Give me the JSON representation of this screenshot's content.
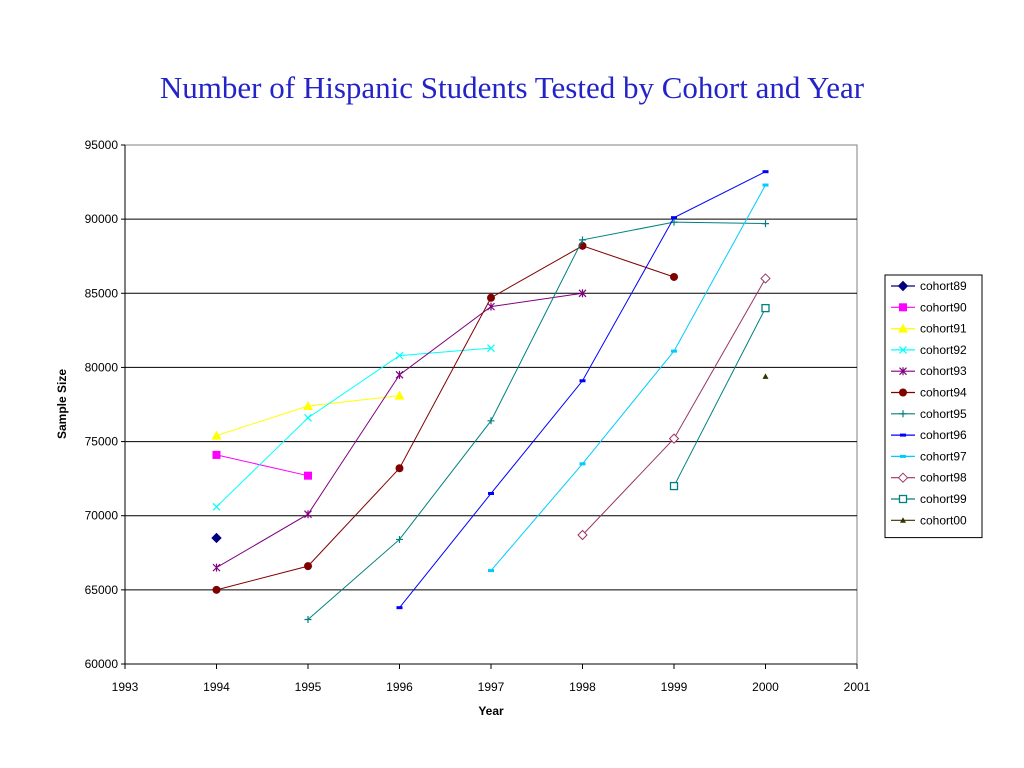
{
  "slide": {
    "title": "Number of Hispanic Students Tested by Cohort and Year"
  },
  "chart_data": {
    "type": "line",
    "title": "Number of Hispanic Students Tested by Cohort and Year",
    "xlabel": "Year",
    "ylabel": "Sample Size",
    "xlim": [
      1993,
      2001
    ],
    "ylim": [
      60000,
      95000
    ],
    "xticks": [
      1993,
      1994,
      1995,
      1996,
      1997,
      1998,
      1999,
      2000,
      2001
    ],
    "yticks": [
      60000,
      65000,
      70000,
      75000,
      80000,
      85000,
      90000,
      95000
    ],
    "grid": "horizontal",
    "legend_position": "right",
    "series": [
      {
        "name": "cohort89",
        "color": "#000080",
        "marker": "diamond-filled",
        "x": [
          1994
        ],
        "y": [
          68500
        ]
      },
      {
        "name": "cohort90",
        "color": "#ff00ff",
        "marker": "square-filled",
        "x": [
          1994,
          1995
        ],
        "y": [
          74100,
          72700
        ]
      },
      {
        "name": "cohort91",
        "color": "#ffff00",
        "marker": "triangle",
        "x": [
          1994,
          1995,
          1996
        ],
        "y": [
          75400,
          77400,
          78100
        ]
      },
      {
        "name": "cohort92",
        "color": "#00ffff",
        "marker": "x",
        "x": [
          1994,
          1995,
          1996,
          1997
        ],
        "y": [
          70600,
          76600,
          80800,
          81300
        ]
      },
      {
        "name": "cohort93",
        "color": "#800080",
        "marker": "star",
        "x": [
          1994,
          1995,
          1996,
          1997,
          1998
        ],
        "y": [
          66500,
          70100,
          79500,
          84100,
          85000
        ]
      },
      {
        "name": "cohort94",
        "color": "#800000",
        "marker": "circle-filled",
        "x": [
          1994,
          1995,
          1996,
          1997,
          1998,
          1999
        ],
        "y": [
          65000,
          66600,
          73200,
          84700,
          88200,
          86100
        ]
      },
      {
        "name": "cohort95",
        "color": "#008080",
        "marker": "plus",
        "x": [
          1995,
          1996,
          1997,
          1998,
          1999,
          2000
        ],
        "y": [
          63000,
          68400,
          76400,
          88600,
          89800,
          89700
        ]
      },
      {
        "name": "cohort96",
        "color": "#0000ff",
        "marker": "dash",
        "x": [
          1996,
          1997,
          1998,
          1999,
          2000
        ],
        "y": [
          63800,
          71500,
          79100,
          90100,
          93200
        ]
      },
      {
        "name": "cohort97",
        "color": "#00ccff",
        "marker": "dash",
        "x": [
          1997,
          1998,
          1999,
          2000
        ],
        "y": [
          66300,
          73500,
          81100,
          92300
        ]
      },
      {
        "name": "cohort98",
        "color": "#993366",
        "marker": "diamond-open",
        "x": [
          1998,
          1999,
          2000
        ],
        "y": [
          68700,
          75200,
          86000
        ]
      },
      {
        "name": "cohort99",
        "color": "#008080",
        "marker": "square-open",
        "x": [
          1999,
          2000
        ],
        "y": [
          72000,
          84000
        ]
      },
      {
        "name": "cohort00",
        "color": "#333300",
        "marker": "triangle-small",
        "x": [
          2000
        ],
        "y": [
          79400
        ]
      }
    ]
  }
}
